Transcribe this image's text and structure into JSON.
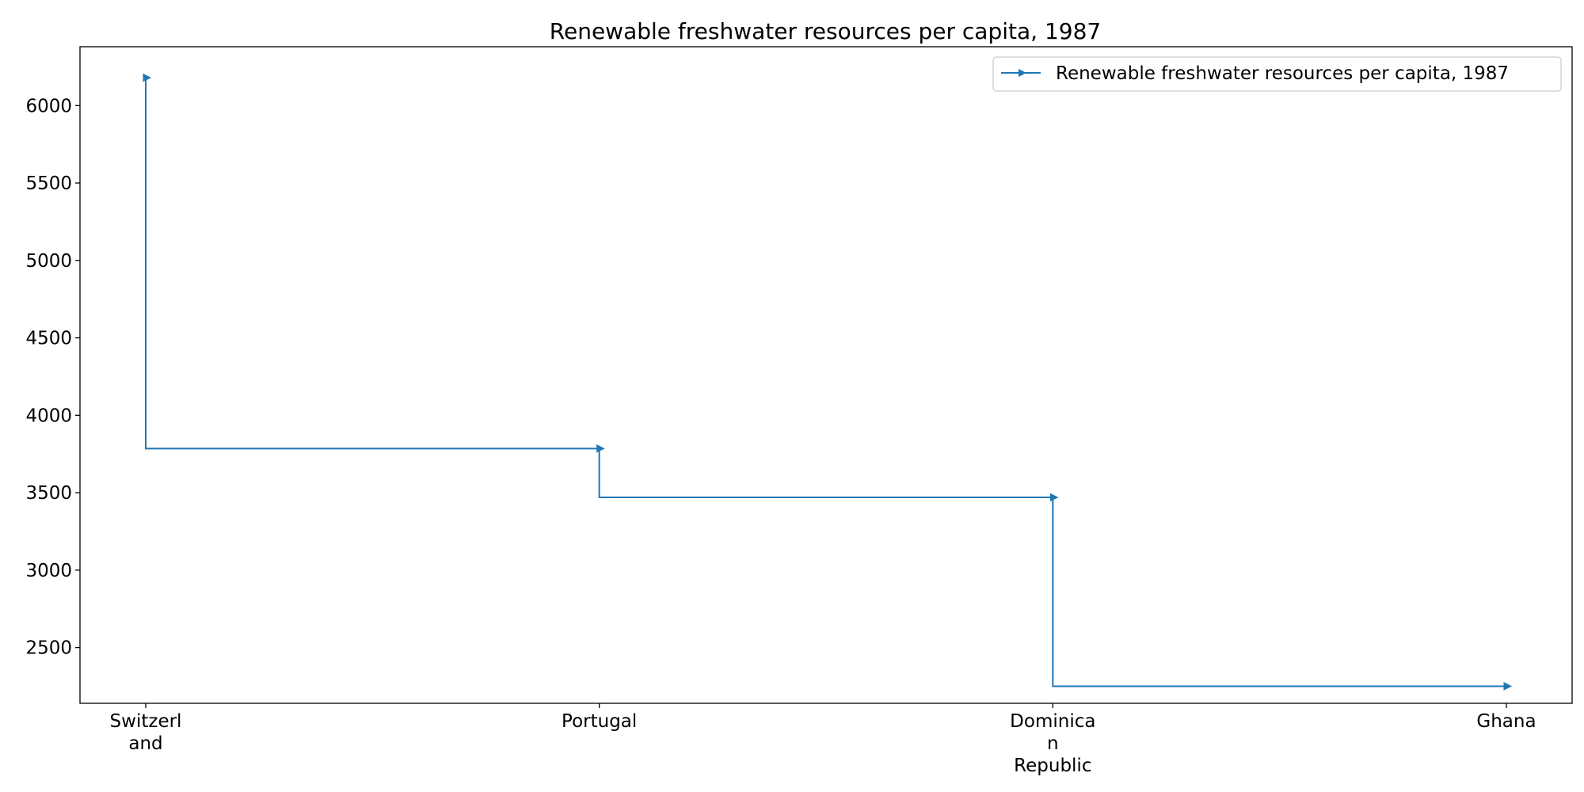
{
  "chart_data": {
    "type": "line",
    "drawstyle": "steps-pre",
    "title": "Renewable freshwater resources per capita, 1987",
    "xlabel": "",
    "ylabel": "",
    "categories": [
      "Switzerland",
      "Portugal",
      "Dominican Republic",
      "Ghana"
    ],
    "category_labels": [
      [
        "Switzerl",
        "and"
      ],
      [
        "Portugal"
      ],
      [
        "Dominica",
        "n",
        "Republic"
      ],
      [
        "Ghana"
      ]
    ],
    "series": [
      {
        "name": "Renewable freshwater resources per capita, 1987",
        "values": [
          6180,
          3785,
          3470,
          2250
        ],
        "color": "#1f77b4",
        "marker": "triangle-right"
      }
    ],
    "yticks": [
      2500,
      3000,
      3500,
      4000,
      4500,
      5000,
      5500,
      6000
    ],
    "ylim": [
      2140,
      6380
    ],
    "grid": false,
    "legend_position": "top-right"
  }
}
